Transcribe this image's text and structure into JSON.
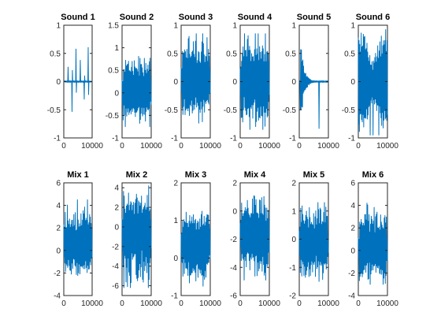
{
  "chart_data": {
    "type": "line",
    "color": "#0072BD",
    "grid": false,
    "x_range": [
      0,
      10000
    ],
    "subplots": [
      {
        "title": "Sound 1",
        "ylim": [
          -1,
          1
        ],
        "yticks": [
          "1",
          "0.5",
          "0",
          "-0.5",
          "-1"
        ],
        "xticks": [
          "0",
          "10000"
        ],
        "kind": "bursts",
        "amp_min": -0.95,
        "amp_max": 0.95,
        "center": 0,
        "burst_count": 7
      },
      {
        "title": "Sound 2",
        "ylim": [
          -1,
          1.5
        ],
        "yticks": [
          "1.5",
          "1",
          "0.5",
          "0",
          "-0.5",
          "-1"
        ],
        "xticks": [
          "0",
          "10000"
        ],
        "kind": "noise",
        "amp_min": -0.75,
        "amp_max": 0.9,
        "center": 0.05
      },
      {
        "title": "Sound 3",
        "ylim": [
          -1,
          1
        ],
        "yticks": [
          "1",
          "0.5",
          "0",
          "-0.5",
          "-1"
        ],
        "xticks": [
          "0",
          "10000"
        ],
        "kind": "noise",
        "amp_min": -0.8,
        "amp_max": 0.85,
        "center": 0
      },
      {
        "title": "Sound 4",
        "ylim": [
          -1,
          1
        ],
        "yticks": [
          "1",
          "0.5",
          "0",
          "-0.5",
          "-1"
        ],
        "xticks": [
          "0",
          "10000"
        ],
        "kind": "noise",
        "amp_min": -0.85,
        "amp_max": 0.85,
        "center": 0
      },
      {
        "title": "Sound 5",
        "ylim": [
          -1,
          1
        ],
        "yticks": [
          "1",
          "0.5",
          "0",
          "-0.5",
          "-1"
        ],
        "xticks": [
          "0",
          "10000"
        ],
        "kind": "decay",
        "amp_min": -0.95,
        "amp_max": 0.95,
        "center": 0
      },
      {
        "title": "Sound 6",
        "ylim": [
          -1,
          1
        ],
        "yticks": [
          "1",
          "0.5",
          "0",
          "-0.5",
          "-1"
        ],
        "xticks": [
          "0",
          "10000"
        ],
        "kind": "chirp",
        "amp_min": -0.95,
        "amp_max": 0.95,
        "center": 0
      },
      {
        "title": "Mix 1",
        "ylim": [
          -4,
          6
        ],
        "yticks": [
          "6",
          "4",
          "2",
          "0",
          "-2",
          "-4"
        ],
        "xticks": [
          "0",
          "10000"
        ],
        "kind": "noise",
        "amp_min": -2.6,
        "amp_max": 4.5,
        "center": 0.3
      },
      {
        "title": "Mix 2",
        "ylim": [
          -7,
          4.5
        ],
        "yticks": [
          "4",
          "2",
          "0",
          "-2",
          "-4",
          "-6"
        ],
        "xticks": [
          "0",
          "10000"
        ],
        "kind": "noise",
        "amp_min": -6.2,
        "amp_max": 4.2,
        "center": -0.5
      },
      {
        "title": "Mix 3",
        "ylim": [
          -1,
          2
        ],
        "yticks": [
          "2",
          "1",
          "0",
          "-1"
        ],
        "xticks": [
          "0",
          "10000"
        ],
        "kind": "noise",
        "amp_min": -0.75,
        "amp_max": 1.4,
        "center": 0.35
      },
      {
        "title": "Mix 4",
        "ylim": [
          -6,
          2
        ],
        "yticks": [
          "2",
          "0",
          "-2",
          "-4",
          "-6"
        ],
        "xticks": [
          "0",
          "10000"
        ],
        "kind": "noise",
        "amp_min": -4.9,
        "amp_max": 1.4,
        "center": -1.7
      },
      {
        "title": "Mix 5",
        "ylim": [
          -2,
          2
        ],
        "yticks": [
          "2",
          "1",
          "0",
          "-1",
          "-2"
        ],
        "xticks": [
          "0",
          "10000"
        ],
        "kind": "noise",
        "amp_min": -1.6,
        "amp_max": 1.3,
        "center": -0.1
      },
      {
        "title": "Mix 6",
        "ylim": [
          -4,
          6
        ],
        "yticks": [
          "6",
          "4",
          "2",
          "0",
          "-2",
          "-4"
        ],
        "xticks": [
          "0",
          "10000"
        ],
        "kind": "noise",
        "amp_min": -3.0,
        "amp_max": 4.2,
        "center": 0.0
      }
    ]
  }
}
